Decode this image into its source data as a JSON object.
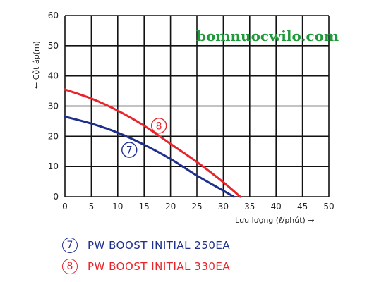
{
  "watermark": "bomnuocwilo.com",
  "chart_data": {
    "type": "line",
    "ylabel": "← Cột áp(m)",
    "xlabel": "Lưu lượng (ℓ/phút) →",
    "xlim": [
      0,
      50
    ],
    "ylim": [
      0,
      60
    ],
    "xticks": [
      0,
      5,
      10,
      15,
      20,
      25,
      30,
      35,
      40,
      45,
      50
    ],
    "yticks": [
      0,
      10,
      20,
      30,
      40,
      50,
      60
    ],
    "grid": true,
    "series": [
      {
        "marker": "7",
        "name": "PW BOOST INITIAL 250EA",
        "color": "#1e2f8c",
        "x": [
          0,
          5,
          10,
          15,
          20,
          25,
          30,
          32
        ],
        "y": [
          26.5,
          24.2,
          21.2,
          17.2,
          12.5,
          7.0,
          2.0,
          0
        ],
        "label_at": [
          12.2,
          15.5
        ]
      },
      {
        "marker": "8",
        "name": "PW BOOST INITIAL 330EA",
        "color": "#e8252b",
        "x": [
          0,
          5,
          10,
          15,
          20,
          25,
          30,
          33.2
        ],
        "y": [
          35.5,
          32.5,
          28.5,
          23.5,
          17.5,
          11.5,
          4.8,
          0
        ],
        "label_at": [
          17.8,
          23.5
        ]
      }
    ]
  }
}
